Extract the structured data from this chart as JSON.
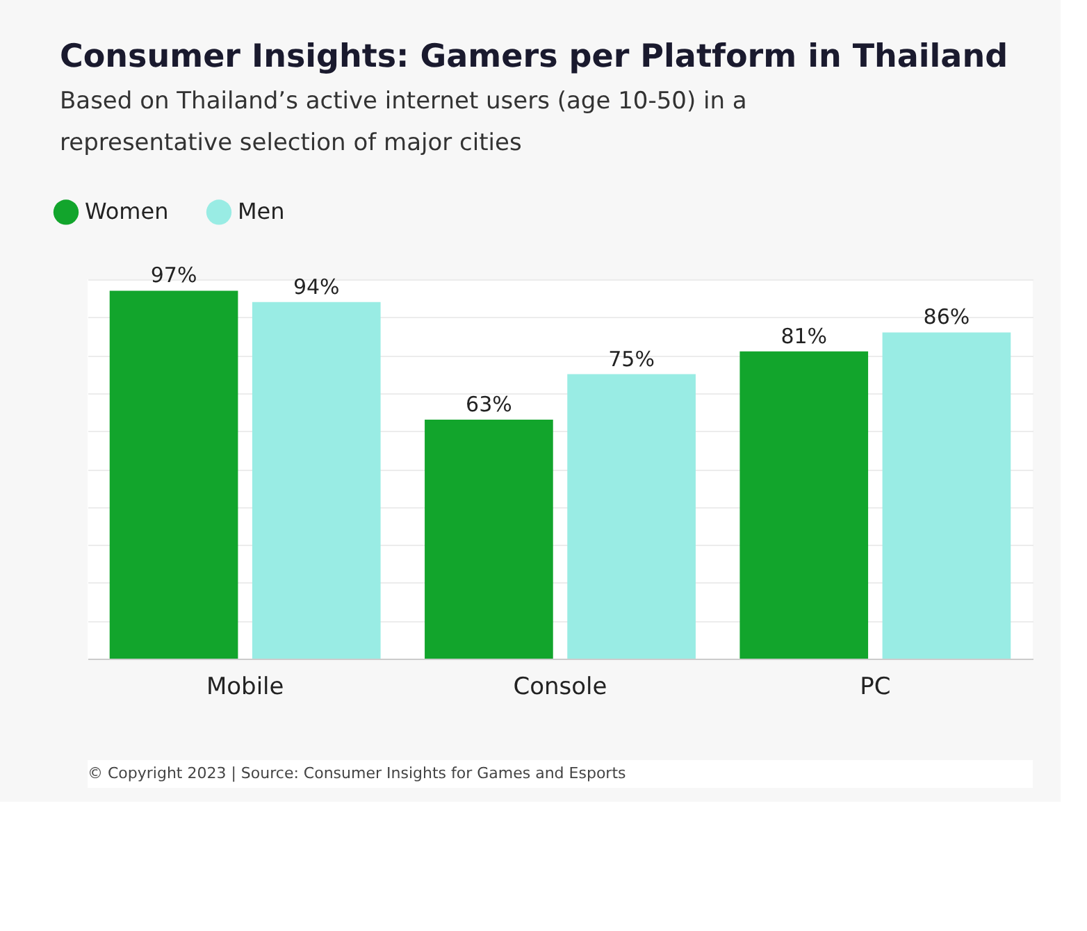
{
  "chart_data": {
    "type": "bar",
    "title": "Consumer Insights: Gamers per Platform in Thailand",
    "subtitle": [
      "Based on Thailand’s active internet users (age 10-50) in a",
      "representative selection of major cities"
    ],
    "categories": [
      "Mobile",
      "Console",
      "PC"
    ],
    "series": [
      {
        "name": "Women",
        "color": "#12a52c",
        "values": [
          97,
          63,
          81
        ],
        "value_labels": [
          "97%",
          "63%",
          "81%"
        ]
      },
      {
        "name": "Men",
        "color": "#99ece4",
        "values": [
          94,
          75,
          86
        ],
        "value_labels": [
          "94%",
          "75%",
          "86%"
        ]
      }
    ],
    "tick_labels": "x",
    "grid": "y",
    "legend": "top left",
    "annotations": [
      "© Copyright 2023 | Source: Consumer Insights for Games and Esports"
    ]
  }
}
